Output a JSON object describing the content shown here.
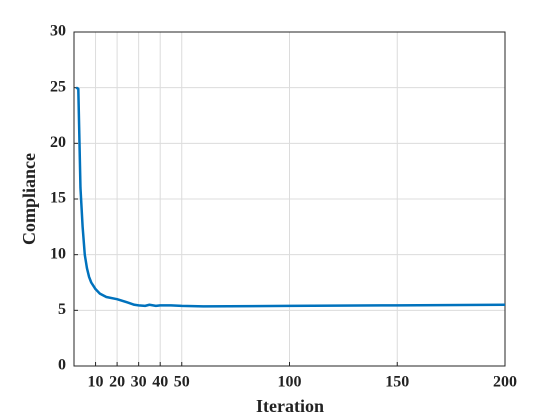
{
  "chart_data": {
    "type": "line",
    "x_label": "Iteration",
    "y_label": "Compliance",
    "x": [
      1,
      2,
      3,
      4,
      5,
      6,
      7,
      8,
      9,
      10,
      12,
      15,
      20,
      25,
      28,
      30,
      33,
      35,
      38,
      40,
      45,
      50,
      60,
      100,
      150,
      200
    ],
    "series": [
      {
        "name": "Compliance",
        "color": "#0072bd",
        "values": [
          25,
          24.9,
          16,
          12.5,
          10,
          8.8,
          8,
          7.5,
          7.2,
          6.9,
          6.5,
          6.2,
          6.0,
          5.7,
          5.5,
          5.45,
          5.4,
          5.5,
          5.4,
          5.45,
          5.45,
          5.4,
          5.35,
          5.4,
          5.45,
          5.5
        ]
      }
    ],
    "xlim": [
      0,
      200
    ],
    "xticks": [
      10,
      20,
      30,
      40,
      50,
      100,
      150,
      200
    ],
    "ylim": [
      0,
      30
    ],
    "yticks": [
      0,
      5,
      10,
      15,
      20,
      25,
      30
    ],
    "grid": true
  }
}
